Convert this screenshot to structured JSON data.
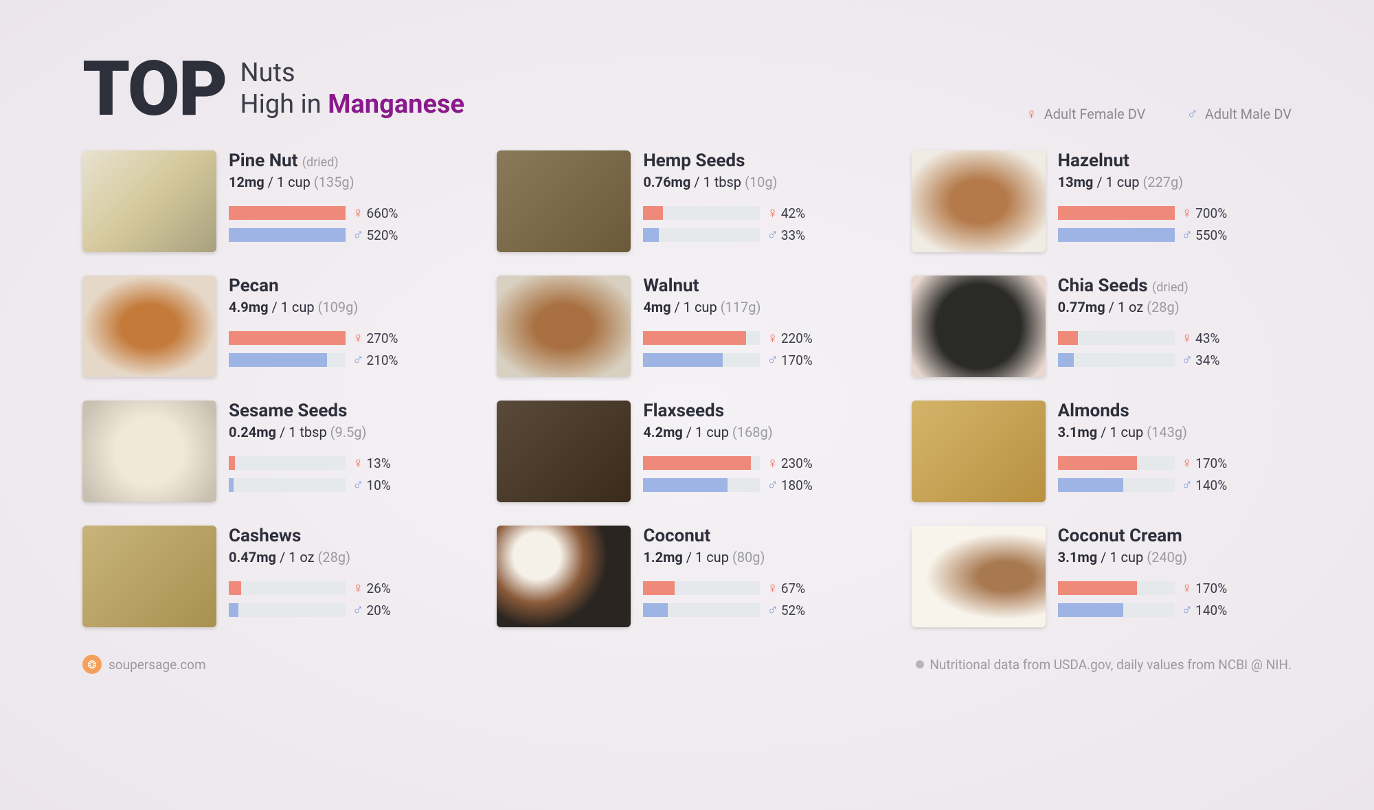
{
  "title": {
    "top": "TOP",
    "line1": "Nuts",
    "line2_prefix": "High in ",
    "line2_highlight": "Manganese"
  },
  "legend": {
    "female": "Adult Female DV",
    "male": "Adult Male DV"
  },
  "colors": {
    "female": "#ef8a7a",
    "male": "#9db4e4",
    "track": "#e6e9ec",
    "highlight": "#8a1a8c"
  },
  "bar_scale_max": 250,
  "items": [
    {
      "name": "Pine Nut",
      "note": "(dried)",
      "mg": "12mg",
      "serving": "1 cup",
      "grams": "(135g)",
      "female_pct": 660,
      "male_pct": 520,
      "thumb": "th-pine"
    },
    {
      "name": "Hemp Seeds",
      "note": "",
      "mg": "0.76mg",
      "serving": "1 tbsp",
      "grams": "(10g)",
      "female_pct": 42,
      "male_pct": 33,
      "thumb": "th-hemp"
    },
    {
      "name": "Hazelnut",
      "note": "",
      "mg": "13mg",
      "serving": "1 cup",
      "grams": "(227g)",
      "female_pct": 700,
      "male_pct": 550,
      "thumb": "th-hazelnut"
    },
    {
      "name": "Pecan",
      "note": "",
      "mg": "4.9mg",
      "serving": "1 cup",
      "grams": "(109g)",
      "female_pct": 270,
      "male_pct": 210,
      "thumb": "th-pecan"
    },
    {
      "name": "Walnut",
      "note": "",
      "mg": "4mg",
      "serving": "1 cup",
      "grams": "(117g)",
      "female_pct": 220,
      "male_pct": 170,
      "thumb": "th-walnut"
    },
    {
      "name": "Chia Seeds",
      "note": "(dried)",
      "mg": "0.77mg",
      "serving": "1 oz",
      "grams": "(28g)",
      "female_pct": 43,
      "male_pct": 34,
      "thumb": "th-chia"
    },
    {
      "name": "Sesame Seeds",
      "note": "",
      "mg": "0.24mg",
      "serving": "1 tbsp",
      "grams": "(9.5g)",
      "female_pct": 13,
      "male_pct": 10,
      "thumb": "th-sesame"
    },
    {
      "name": "Flaxseeds",
      "note": "",
      "mg": "4.2mg",
      "serving": "1 cup",
      "grams": "(168g)",
      "female_pct": 230,
      "male_pct": 180,
      "thumb": "th-flax"
    },
    {
      "name": "Almonds",
      "note": "",
      "mg": "3.1mg",
      "serving": "1 cup",
      "grams": "(143g)",
      "female_pct": 170,
      "male_pct": 140,
      "thumb": "th-almond"
    },
    {
      "name": "Cashews",
      "note": "",
      "mg": "0.47mg",
      "serving": "1 oz",
      "grams": "(28g)",
      "female_pct": 26,
      "male_pct": 20,
      "thumb": "th-cashew"
    },
    {
      "name": "Coconut",
      "note": "",
      "mg": "1.2mg",
      "serving": "1 cup",
      "grams": "(80g)",
      "female_pct": 67,
      "male_pct": 52,
      "thumb": "th-coconut"
    },
    {
      "name": "Coconut Cream",
      "note": "",
      "mg": "3.1mg",
      "serving": "1 cup",
      "grams": "(240g)",
      "female_pct": 170,
      "male_pct": 140,
      "thumb": "th-cream"
    }
  ],
  "footer": {
    "brand": "soupersage.com",
    "credit": "Nutritional data from USDA.gov, daily values from NCBI @ NIH."
  }
}
